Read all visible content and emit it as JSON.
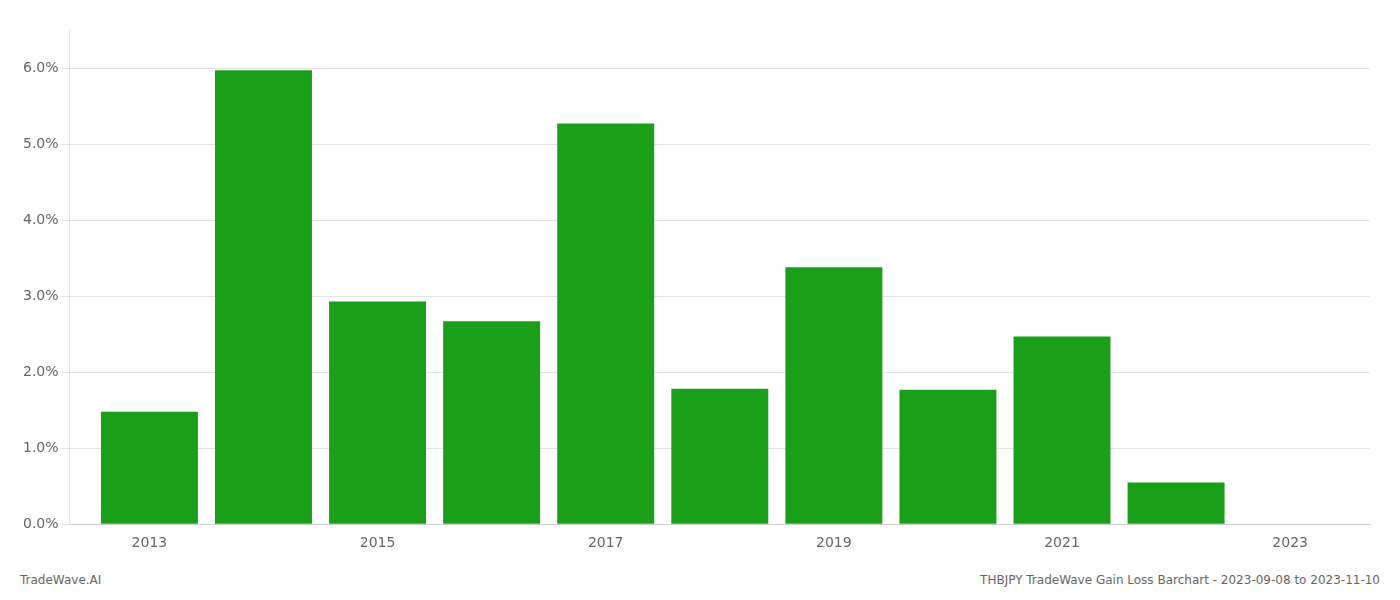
{
  "chart_data": {
    "type": "bar",
    "x": [
      2013,
      2014,
      2015,
      2016,
      2017,
      2018,
      2019,
      2020,
      2021,
      2022,
      2023
    ],
    "values": [
      0.0148,
      0.0597,
      0.0293,
      0.0267,
      0.0527,
      0.0178,
      0.0338,
      0.0177,
      0.0247,
      0.0055,
      0.0
    ],
    "color": "#1aa018",
    "xlim": [
      2012.3,
      2023.7
    ],
    "xticks": [
      2013,
      2015,
      2017,
      2019,
      2021,
      2023
    ],
    "ylim": [
      0.0,
      0.065
    ],
    "yticks": [
      {
        "value": 0.0,
        "label": "0.0%"
      },
      {
        "value": 0.01,
        "label": "1.0%"
      },
      {
        "value": 0.02,
        "label": "2.0%"
      },
      {
        "value": 0.03,
        "label": "3.0%"
      },
      {
        "value": 0.04,
        "label": "4.0%"
      },
      {
        "value": 0.05,
        "label": "5.0%"
      },
      {
        "value": 0.06,
        "label": "6.0%"
      }
    ],
    "grid": true,
    "annotations": [
      "TradeWave.AI",
      "THBJPY TradeWave Gain Loss Barchart - 2023-09-08 to 2023-11-10"
    ]
  }
}
